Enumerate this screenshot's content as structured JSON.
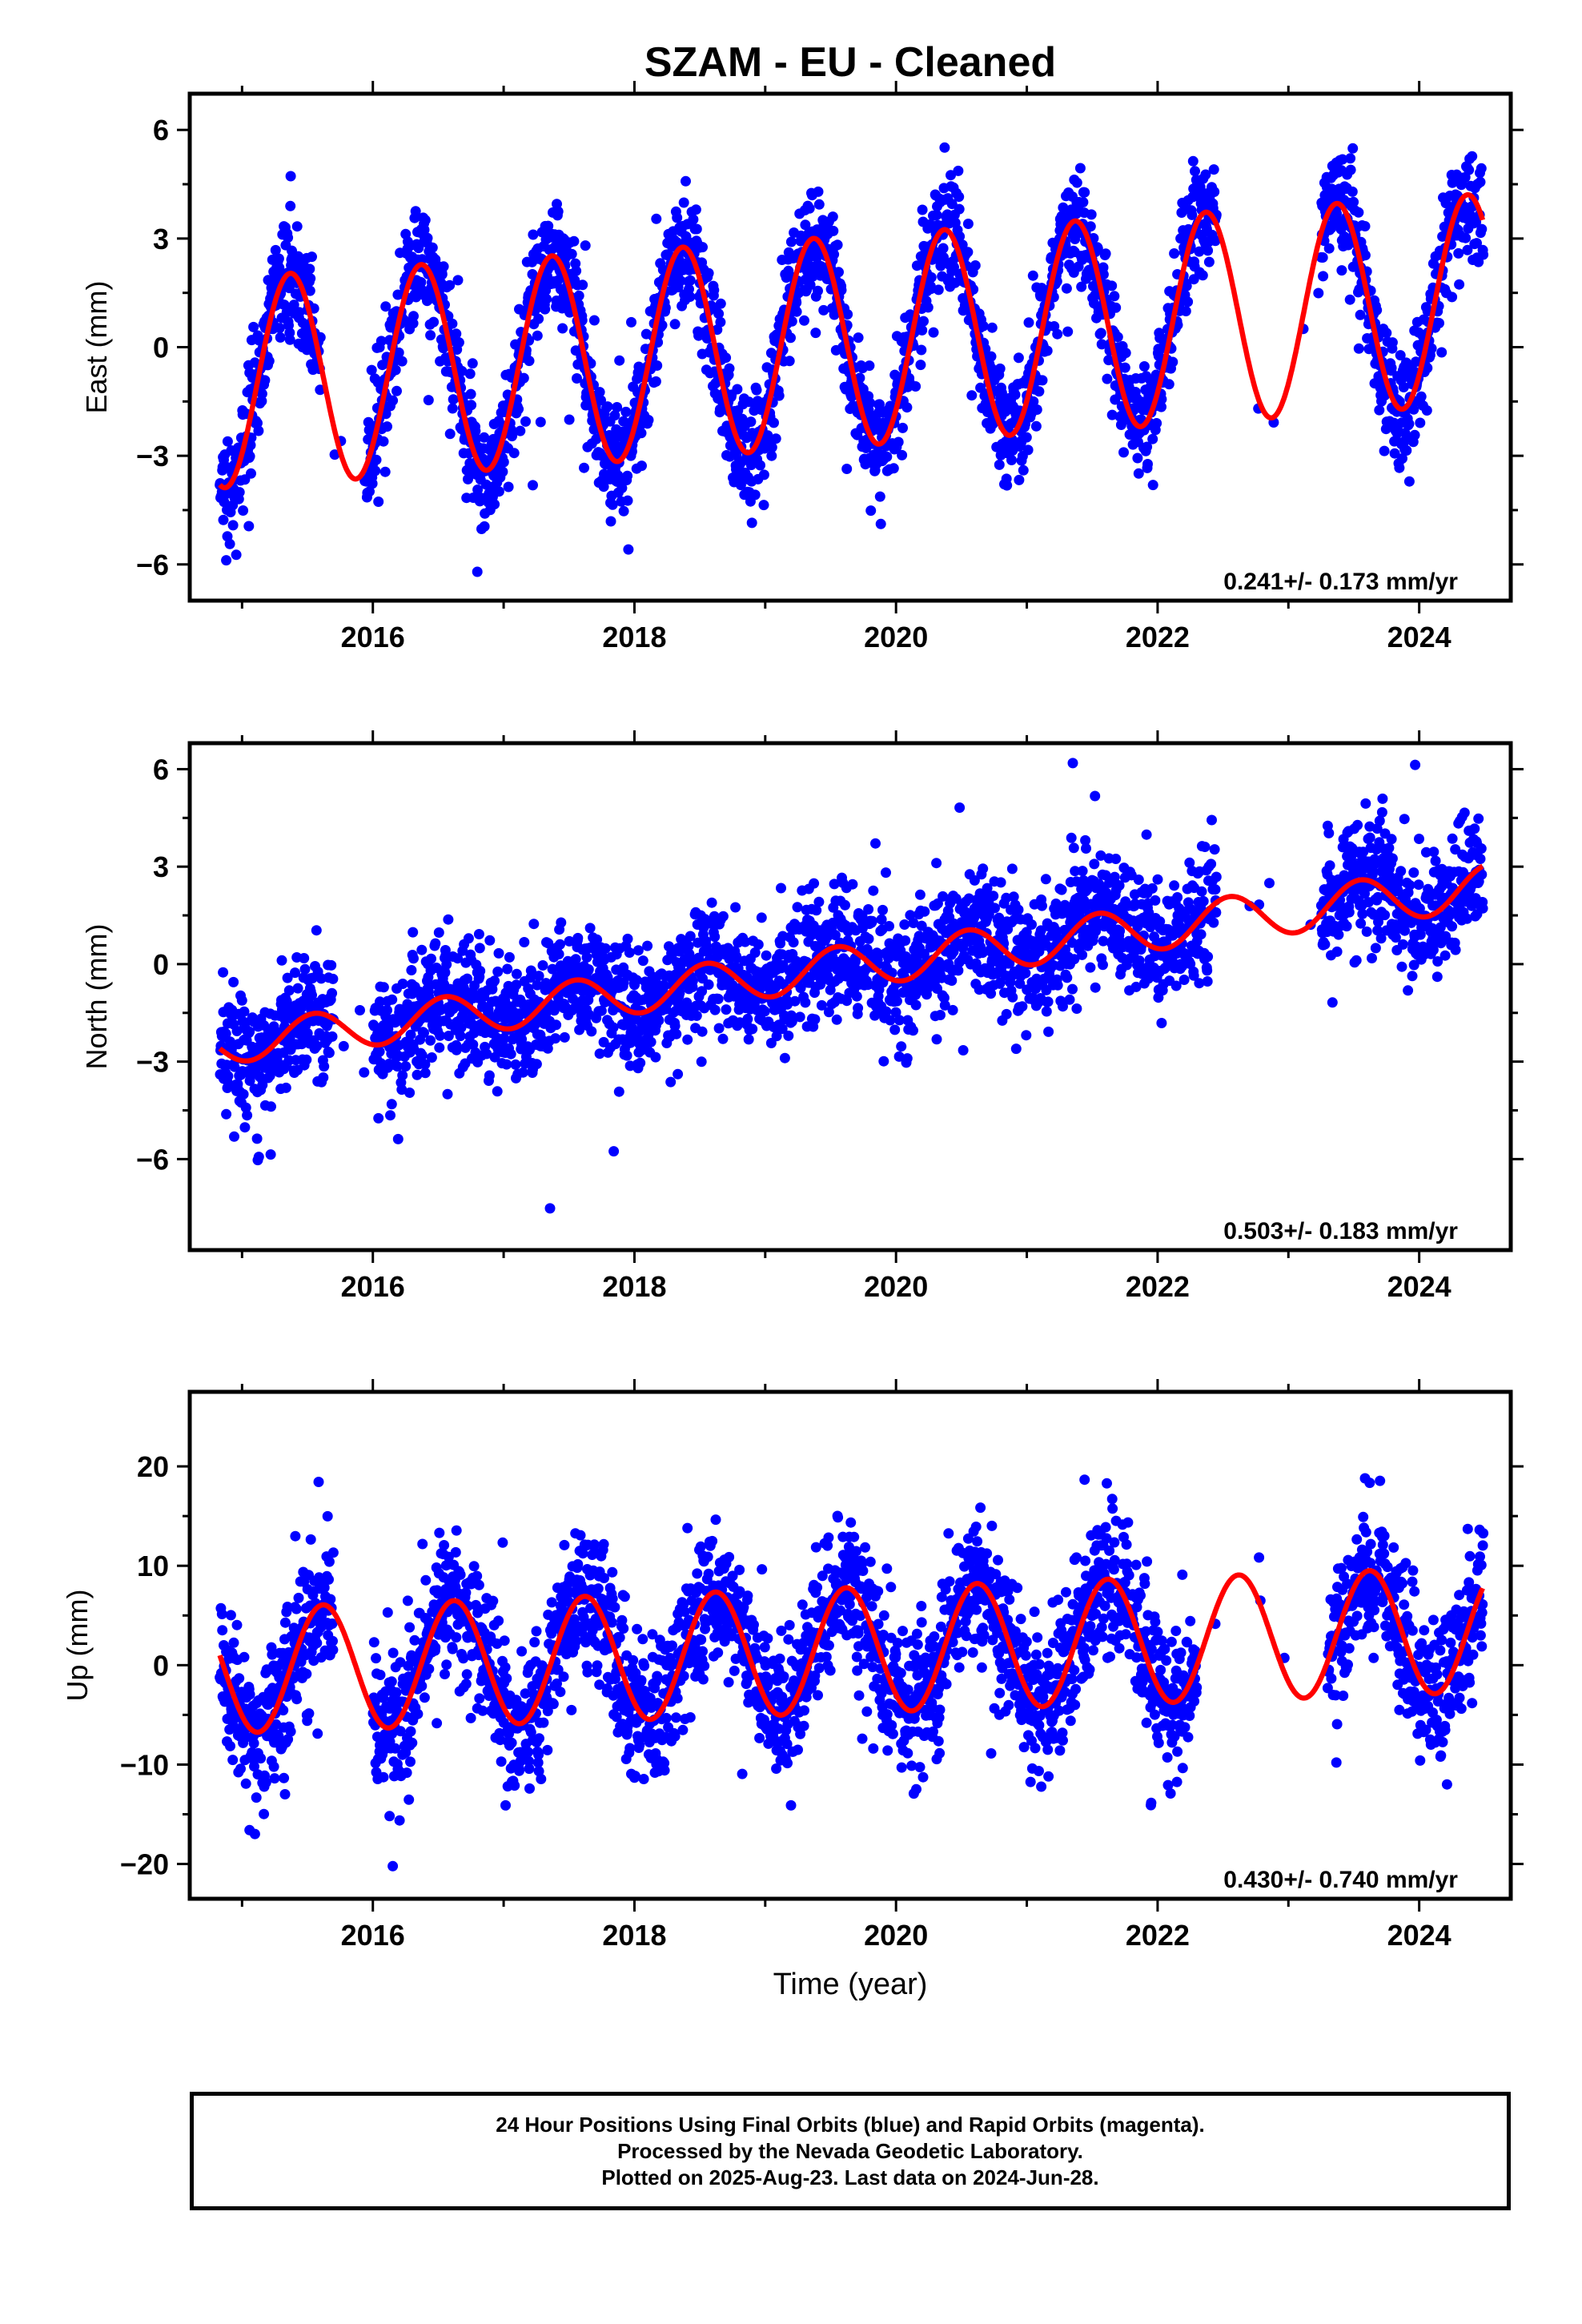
{
  "title": "SZAM  - EU - Cleaned",
  "xlabel": "Time (year)",
  "footer": {
    "line1": "24 Hour Positions Using Final Orbits (blue) and Rapid Orbits (magenta).",
    "line2": "Processed by the Nevada Geodetic Laboratory.",
    "line3": "Plotted on 2025-Aug-23. Last data on 2024-Jun-28."
  },
  "colors": {
    "points": "#0000ff",
    "fit": "#ff0000",
    "axes": "#000000"
  },
  "chart_data": [
    {
      "type": "scatter",
      "component": "east",
      "ylabel": "East (mm)",
      "rate_label": "0.241+/- 0.173 mm/yr",
      "xlim": [
        2014.6,
        2024.7
      ],
      "ylim": [
        -7.0,
        7.0
      ],
      "xticks": [
        2016,
        2018,
        2020,
        2022,
        2024
      ],
      "yticks": [
        -6,
        -3,
        0,
        3,
        6
      ],
      "ytick_labels": [
        "−6",
        "−3",
        "0",
        "3",
        "6"
      ],
      "fit": {
        "offset": -0.95,
        "rate": 0.241,
        "amp_start": 2.9,
        "amp_end": 2.9,
        "peak_phase": 0.37,
        "ref_year": 2015.0
      },
      "noise_sd": 0.8,
      "gaps": [
        [
          2015.6,
          2015.95
        ],
        [
          2022.45,
          2023.25
        ]
      ],
      "sparse_gaps": [
        [
          2022.85,
          2022.9
        ]
      ],
      "data_start": 2014.83,
      "data_end": 2024.49
    },
    {
      "type": "scatter",
      "component": "north",
      "ylabel": "North (mm)",
      "rate_label": "0.503+/- 0.183 mm/yr",
      "xlim": [
        2014.6,
        2024.7
      ],
      "ylim": [
        -8.8,
        6.8
      ],
      "xticks": [
        2016,
        2018,
        2020,
        2022,
        2024
      ],
      "yticks": [
        -6,
        -3,
        0,
        3,
        6
      ],
      "ytick_labels": [
        "−6",
        "−3",
        "0",
        "3",
        "6"
      ],
      "fit": {
        "offset": -2.4,
        "rate": 0.503,
        "amp_start": 0.6,
        "amp_end": 0.7,
        "peak_phase": 0.55,
        "ref_year": 2015.0
      },
      "noise_sd": 0.95,
      "gaps": [
        [
          2015.7,
          2016.0
        ],
        [
          2022.45,
          2023.25
        ]
      ],
      "sparse_gaps": [],
      "data_start": 2014.83,
      "data_end": 2024.49
    },
    {
      "type": "scatter",
      "component": "up",
      "ylabel": "Up (mm)",
      "rate_label": "0.430+/- 0.740 mm/yr",
      "xlim": [
        2014.6,
        2024.7
      ],
      "ylim": [
        -23.5,
        27.5
      ],
      "xticks": [
        2016,
        2018,
        2020,
        2022,
        2024
      ],
      "yticks": [
        -20,
        -10,
        0,
        10,
        20
      ],
      "ytick_labels": [
        "−20",
        "−10",
        "0",
        "10",
        "20"
      ],
      "fit": {
        "offset": -0.5,
        "rate": 0.43,
        "amp_start": 6.3,
        "amp_end": 6.3,
        "peak_phase": 0.62,
        "ref_year": 2015.0
      },
      "noise_sd": 3.6,
      "gaps": [
        [
          2015.7,
          2016.0
        ],
        [
          2022.3,
          2023.3
        ]
      ],
      "sparse_gaps": [],
      "data_start": 2014.83,
      "data_end": 2024.49
    }
  ]
}
